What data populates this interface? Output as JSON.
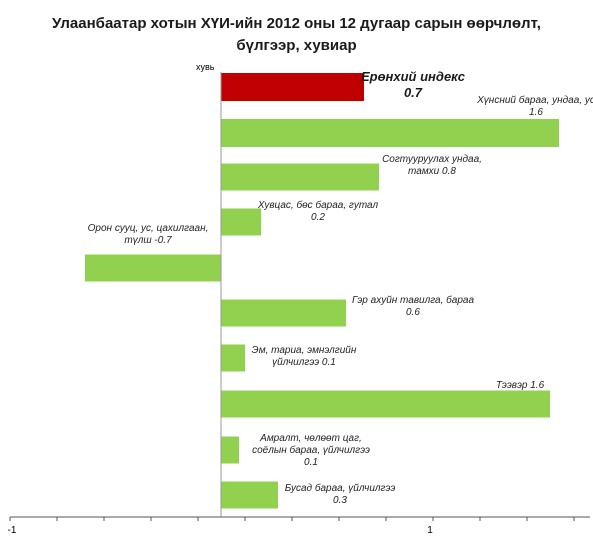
{
  "chart_data": {
    "type": "bar",
    "orientation": "horizontal",
    "title_line1": "Улаанбаатар хотын ХҮИ-ийн 2012 оны 12 дугаар сарын өөрчлөлт,",
    "title_line2": "бүлгээр, хувиар",
    "unit_label": "хувь",
    "x_tick_labels": [
      "-1",
      "1"
    ],
    "grid": false,
    "legend": "none",
    "colors": {
      "main_index": "#c00000",
      "group": "#92d050"
    },
    "bars": [
      {
        "label_lines": [
          "Ерөнхий индекс",
          "0.7"
        ],
        "value": 0.7,
        "kind": "main"
      },
      {
        "label_lines": [
          "Хүнсний бараа, ундаа, ус",
          "1.6"
        ],
        "value": 1.6,
        "kind": "group"
      },
      {
        "label_lines": [
          "Согтууруулах ундаа,",
          "тамхи 0.8"
        ],
        "value": 0.8,
        "kind": "group"
      },
      {
        "label_lines": [
          "Хувцас, бөс бараа, гутал",
          "0.2"
        ],
        "value": 0.2,
        "kind": "group"
      },
      {
        "label_lines": [
          "Орон сууц, ус, цахилгаан,",
          "түлш -0.7"
        ],
        "value": -0.7,
        "kind": "group"
      },
      {
        "label_lines": [
          "Гэр ахуйн тавилга, бараа",
          "0.6"
        ],
        "value": 0.6,
        "kind": "group"
      },
      {
        "label_lines": [
          "Эм, тариа, эмнэлгийн",
          "үйлчилгээ 0.1"
        ],
        "value": 0.1,
        "kind": "group"
      },
      {
        "label_lines": [
          "Тээвэр 1.6"
        ],
        "value": 1.6,
        "kind": "group"
      },
      {
        "label_lines": [
          "Амралт, чөлөөт цаг,",
          "соёлын бараа, үйлчилгээ",
          "0.1"
        ],
        "value": 0.1,
        "kind": "group"
      },
      {
        "label_lines": [
          "Бусад бараа, үйлчилгээ",
          "0.3"
        ],
        "value": 0.3,
        "kind": "group"
      }
    ]
  }
}
